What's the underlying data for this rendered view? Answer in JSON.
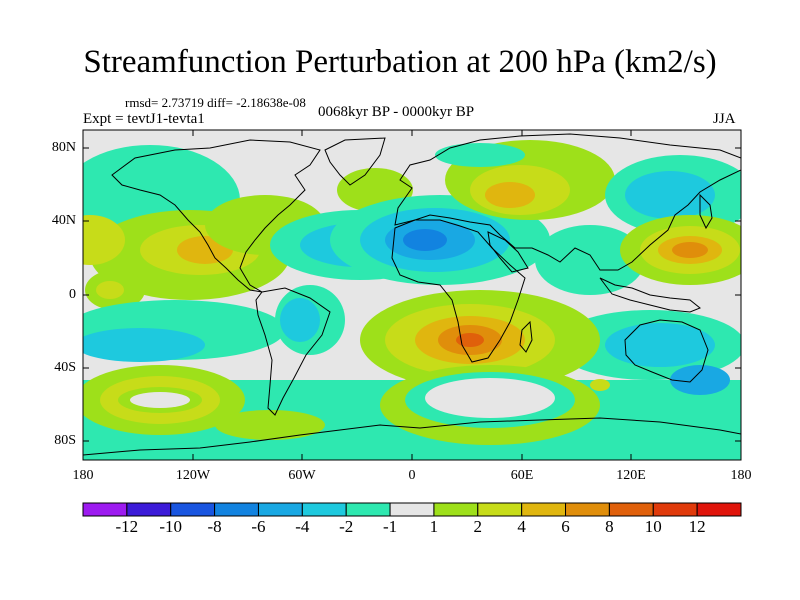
{
  "title": "Streamfunction Perturbation at 200 hPa (km2/s)",
  "stat_line": "rmsd= 2.73719 diff= -2.18638e-08",
  "expt_line": "Expt = tevtJ1-tevta1",
  "subtitle": "0068kyr BP - 0000kyr BP",
  "season": "JJA",
  "lat_labels": [
    "80N",
    "40N",
    "0",
    "40S",
    "80S"
  ],
  "lon_labels": [
    "180",
    "120W",
    "60W",
    "0",
    "60E",
    "120E",
    "180"
  ],
  "colorbar": {
    "labels": [
      "-12",
      "-10",
      "-8",
      "-6",
      "-4",
      "-2",
      "-1",
      "1",
      "2",
      "4",
      "6",
      "8",
      "10",
      "12"
    ],
    "colors": [
      "#9d1bf0",
      "#3c1bd8",
      "#1955e0",
      "#1283e0",
      "#19a8e3",
      "#1ec9de",
      "#2ee8b0",
      "#e6e6e6",
      "#9ee01a",
      "#c7dc19",
      "#e0b60f",
      "#e08e0b",
      "#e0600b",
      "#e03a0b",
      "#e0140b"
    ]
  },
  "map_fields": [
    {
      "name": "north-pacific-high",
      "color": "#c7dc19"
    },
    {
      "name": "north-america-high",
      "color": "#e0b60f"
    },
    {
      "name": "north-atlantic-low",
      "color": "#19a8e3"
    },
    {
      "name": "sahara-low",
      "color": "#1955e0"
    },
    {
      "name": "siberia-high",
      "color": "#e0b60f"
    },
    {
      "name": "east-asia-low",
      "color": "#19a8e3"
    },
    {
      "name": "west-pacific-high",
      "color": "#e08e0b"
    },
    {
      "name": "south-africa-high",
      "color": "#e0600b"
    },
    {
      "name": "south-pacific-low",
      "color": "#19a8e3"
    },
    {
      "name": "southern-ocean-band",
      "color": "#2ee8b0"
    }
  ]
}
